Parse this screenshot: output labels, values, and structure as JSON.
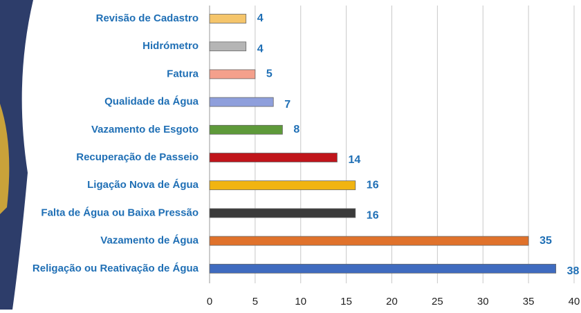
{
  "chart_data": {
    "type": "bar",
    "orientation": "horizontal",
    "categories": [
      "Revisão de Cadastro",
      "Hidrómetro",
      "Fatura",
      "Qualidade da Água",
      "Vazamento de Esgoto",
      "Recuperação de Passeio",
      "Ligação Nova de Água",
      "Falta de Água ou Baixa Pressão",
      "Vazamento de Água",
      "Religação ou Reativação de Água"
    ],
    "values": [
      4,
      4,
      5,
      7,
      8,
      14,
      16,
      16,
      35,
      38
    ],
    "colors": [
      "#f5c56b",
      "#b5b5b5",
      "#f4a08c",
      "#8f9fdc",
      "#5e9a3a",
      "#c0151b",
      "#f1b411",
      "#3a3a3a",
      "#e0722b",
      "#3f6bbf"
    ],
    "xlim": [
      0,
      40
    ],
    "xticks": [
      0,
      5,
      10,
      15,
      20,
      25,
      30,
      35,
      40
    ],
    "grid": true
  }
}
